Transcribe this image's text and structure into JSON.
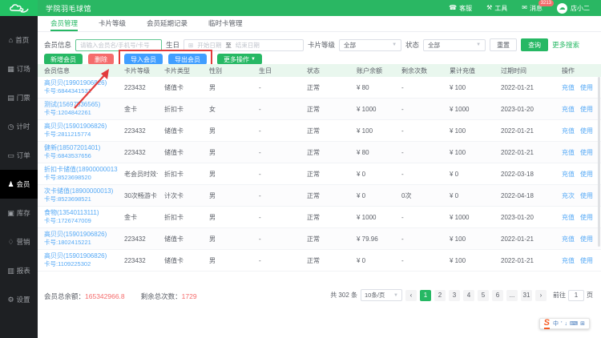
{
  "topbar": {
    "title": "学院羽毛球馆",
    "nav": [
      {
        "key": "service",
        "label": "客服",
        "icon": "headset-icon",
        "badge": ""
      },
      {
        "key": "tools",
        "label": "工具",
        "icon": "wrench-icon",
        "badge": ""
      },
      {
        "key": "message",
        "label": "消息",
        "icon": "message-icon",
        "badge": "3213"
      }
    ],
    "user": "店小二"
  },
  "sidebar": {
    "items": [
      {
        "key": "home",
        "label": "首页",
        "icon": "home-icon",
        "active": false
      },
      {
        "key": "booking",
        "label": "订场",
        "icon": "booking-icon",
        "active": false
      },
      {
        "key": "ticket",
        "label": "门票",
        "icon": "ticket-icon",
        "active": false
      },
      {
        "key": "timing",
        "label": "计时",
        "icon": "timer-icon",
        "active": false
      },
      {
        "key": "orders",
        "label": "订单",
        "icon": "order-icon",
        "active": false
      },
      {
        "key": "members",
        "label": "会员",
        "icon": "member-icon",
        "active": true
      },
      {
        "key": "inventory",
        "label": "库存",
        "icon": "inventory-icon",
        "active": false
      },
      {
        "key": "marketing",
        "label": "营销",
        "icon": "marketing-icon",
        "active": false
      },
      {
        "key": "reports",
        "label": "报表",
        "icon": "report-icon",
        "active": false
      },
      {
        "key": "settings",
        "label": "设置",
        "icon": "settings-icon",
        "active": false
      }
    ]
  },
  "tabs": [
    {
      "key": "member-manage",
      "label": "会员管理",
      "active": true
    },
    {
      "key": "card-level",
      "label": "卡片等级",
      "active": false
    },
    {
      "key": "member-extension",
      "label": "会员延期记录",
      "active": false
    },
    {
      "key": "temp-card",
      "label": "临时卡管理",
      "active": false
    }
  ],
  "filters": {
    "member_label": "会员信息",
    "member_placeholder": "请输入会员名/手机号/卡号",
    "birthday_label": "生日",
    "date_start_placeholder": "开始日期",
    "date_separator": "至",
    "date_end_placeholder": "结束日期",
    "card_level_label": "卡片等级",
    "card_level_value": "全部",
    "status_label": "状态",
    "status_value": "全部",
    "reset_button": "重置",
    "search_button": "查询",
    "more_search": "更多搜索"
  },
  "actions": {
    "add": "新增会员",
    "delete": "删除",
    "import": "导入会员",
    "export": "导出会员",
    "more": "更多操作"
  },
  "table": {
    "columns": [
      "会员信息",
      "卡片等级",
      "卡片类型",
      "性别",
      "生日",
      "状态",
      "账户余额",
      "剩余次数",
      "累计充值",
      "过期时间",
      "操作"
    ],
    "rows": [
      {
        "name": "高贝贝(19901906826)",
        "card_no": "卡号:6844341531",
        "level": "223432",
        "type": "储值卡",
        "gender": "男",
        "birthday": "-",
        "status": "正常",
        "balance": "¥ 80",
        "times": "-",
        "total": "¥ 100",
        "expire": "2022-01-21",
        "op1": "充值",
        "op2": "使用"
      },
      {
        "name": "测试(15697536565)",
        "card_no": "卡号:1204842261",
        "level": "金卡",
        "type": "折扣卡",
        "gender": "女",
        "birthday": "-",
        "status": "正常",
        "balance": "¥ 1000",
        "times": "-",
        "total": "¥ 1000",
        "expire": "2023-01-20",
        "op1": "充值",
        "op2": "使用"
      },
      {
        "name": "高贝贝(15901906826)",
        "card_no": "卡号:2811215774",
        "level": "223432",
        "type": "储值卡",
        "gender": "男",
        "birthday": "-",
        "status": "正常",
        "balance": "¥ 100",
        "times": "-",
        "total": "¥ 100",
        "expire": "2022-01-21",
        "op1": "充值",
        "op2": "使用"
      },
      {
        "name": "健新(18507201401)",
        "card_no": "卡号:6843537656",
        "level": "223432",
        "type": "储值卡",
        "gender": "男",
        "birthday": "-",
        "status": "正常",
        "balance": "¥ 80",
        "times": "-",
        "total": "¥ 100",
        "expire": "2022-01-21",
        "op1": "充值",
        "op2": "使用"
      },
      {
        "name": "折扣卡储值(18900000013)",
        "card_no": "卡号:8523698520",
        "level": "老会员时效卡",
        "type": "折扣卡",
        "gender": "男",
        "birthday": "-",
        "status": "正常",
        "balance": "¥ 0",
        "times": "-",
        "total": "¥ 0",
        "expire": "2022-03-18",
        "op1": "充值",
        "op2": "使用"
      },
      {
        "name": "次卡储值(18900000013)",
        "card_no": "卡号:8523698521",
        "level": "30次畅游卡",
        "type": "计次卡",
        "gender": "男",
        "birthday": "-",
        "status": "正常",
        "balance": "¥ 0",
        "times": "0次",
        "total": "¥ 0",
        "expire": "2022-04-18",
        "op1": "充次",
        "op2": "使用"
      },
      {
        "name": "食物(13540113111)",
        "card_no": "卡号:1726747009",
        "level": "金卡",
        "type": "折扣卡",
        "gender": "男",
        "birthday": "-",
        "status": "正常",
        "balance": "¥ 1000",
        "times": "-",
        "total": "¥ 1000",
        "expire": "2023-01-20",
        "op1": "充值",
        "op2": "使用"
      },
      {
        "name": "高贝贝(15901906826)",
        "card_no": "卡号:1802415221",
        "level": "223432",
        "type": "储值卡",
        "gender": "男",
        "birthday": "-",
        "status": "正常",
        "balance": "¥ 79.96",
        "times": "-",
        "total": "¥ 100",
        "expire": "2022-01-21",
        "op1": "充值",
        "op2": "使用"
      },
      {
        "name": "高贝贝(15901906826)",
        "card_no": "卡号:1109225302",
        "level": "223432",
        "type": "储值卡",
        "gender": "男",
        "birthday": "-",
        "status": "正常",
        "balance": "¥ 0",
        "times": "-",
        "total": "¥ 100",
        "expire": "2022-01-21",
        "op1": "充值",
        "op2": "使用"
      }
    ]
  },
  "footer": {
    "total_label": "会员总余额：",
    "total_value": "165342966.8",
    "times_label": "剩余总次数：",
    "times_value": "1729"
  },
  "pagination": {
    "total_text": "共 302 条",
    "page_size": "10条/页",
    "prev": "‹",
    "next": "›",
    "pages": [
      "1",
      "2",
      "3",
      "4",
      "5",
      "6",
      "...",
      "31"
    ],
    "active_page": "1",
    "goto_label": "前往",
    "goto_value": "1",
    "page_unit": "页"
  },
  "ime": {
    "logo": "S",
    "icons": [
      "中",
      "’",
      "↓",
      "⌨",
      "⊞"
    ]
  },
  "colors": {
    "brand_green": "#26b864",
    "topbar_green": "#2ab763",
    "action_blue": "#409eff",
    "danger_red": "#f56c6c",
    "annotation_red": "#e23b3b",
    "link_blue": "#55a9f6",
    "table_header_bg": "#e9f7ee"
  }
}
